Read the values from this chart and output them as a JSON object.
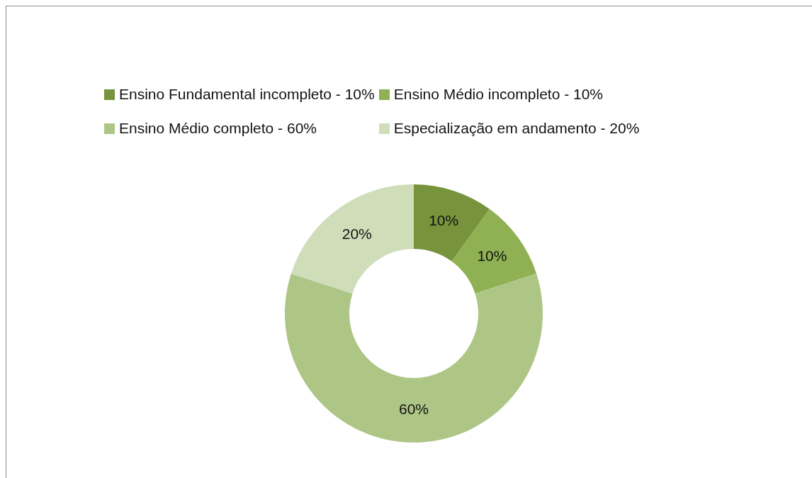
{
  "chart_data": {
    "type": "donut",
    "categories": [
      "Ensino Fundamental incompleto - 10%",
      "Ensino Médio incompleto - 10%",
      "Ensino Médio completo - 60%",
      "Especialização em andamento - 20%"
    ],
    "values": [
      10,
      10,
      60,
      20
    ],
    "colors": [
      "#77933c",
      "#8fb153",
      "#adc686",
      "#d0ddb9"
    ],
    "value_labels": [
      "10%",
      "10%",
      "60%",
      "20%"
    ],
    "legend": "top"
  }
}
